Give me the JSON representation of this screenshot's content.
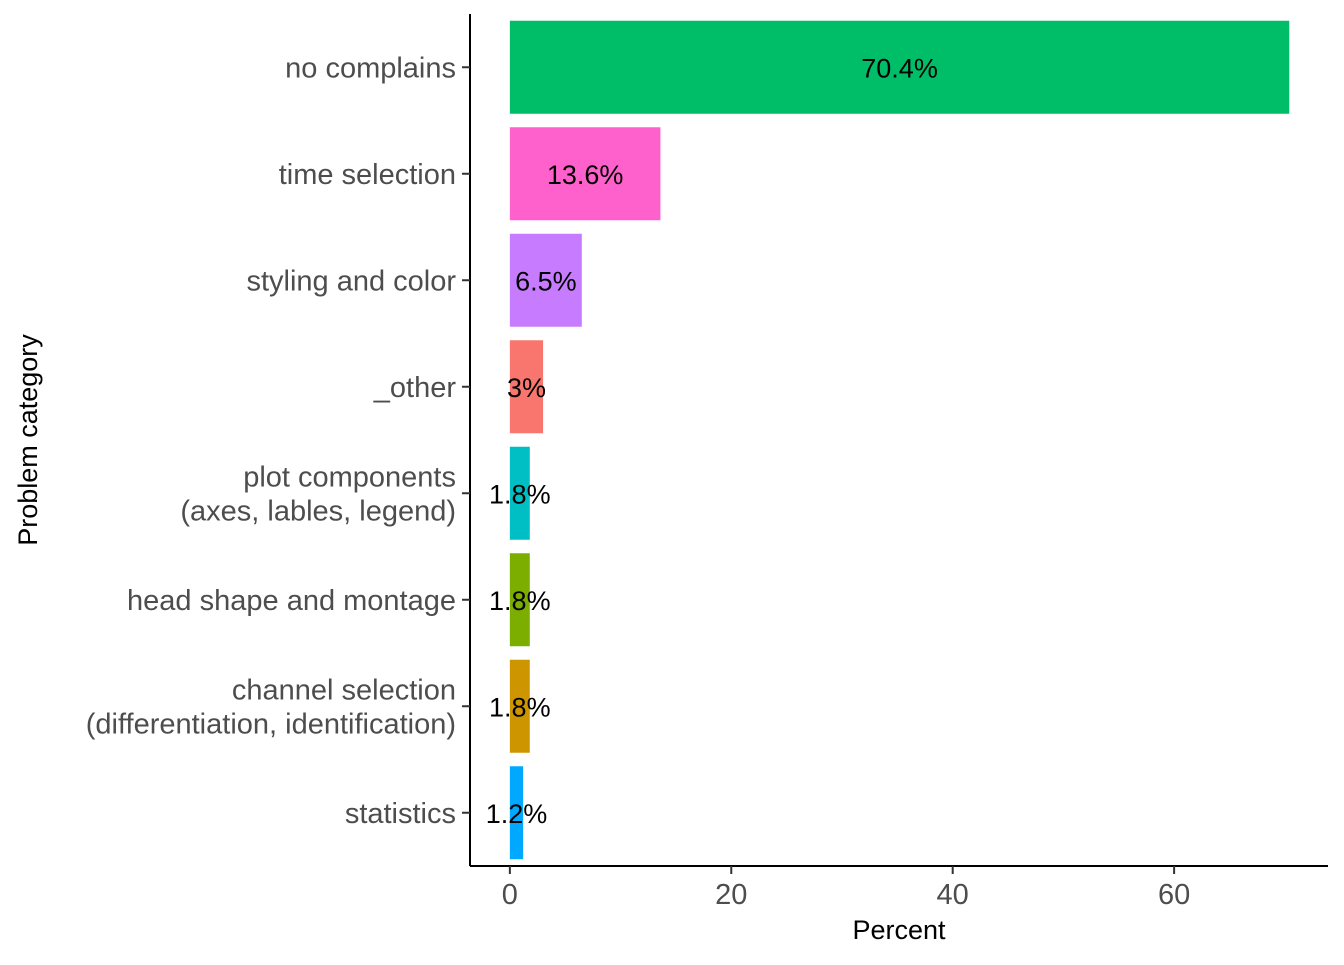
{
  "chart_data": {
    "type": "bar",
    "orientation": "horizontal",
    "categories": [
      [
        "no complains"
      ],
      [
        "time selection"
      ],
      [
        "styling and color"
      ],
      [
        "_other"
      ],
      [
        "plot components",
        "(axes, lables, legend)"
      ],
      [
        "head shape and montage"
      ],
      [
        "channel selection",
        "(differentiation, identification)"
      ],
      [
        "statistics"
      ]
    ],
    "values": [
      70.4,
      13.6,
      6.5,
      3.0,
      1.8,
      1.8,
      1.8,
      1.2
    ],
    "data_labels": [
      "70.4%",
      "13.6%",
      "6.5%",
      "3%",
      "1.8%",
      "1.8%",
      "1.8%",
      "1.2%"
    ],
    "colors": [
      "#00BE67",
      "#FF61CC",
      "#C77CFF",
      "#F8766D",
      "#00BFC4",
      "#7CAE00",
      "#CD9600",
      "#00A9FF"
    ],
    "xlabel": "Percent",
    "ylabel": "Problem category",
    "xlim": [
      -3.6,
      73.9
    ],
    "xticks": [
      0,
      20,
      40,
      60
    ],
    "x_tick_labels": [
      "0",
      "20",
      "40",
      "60"
    ],
    "grid": false,
    "legend": "none"
  }
}
